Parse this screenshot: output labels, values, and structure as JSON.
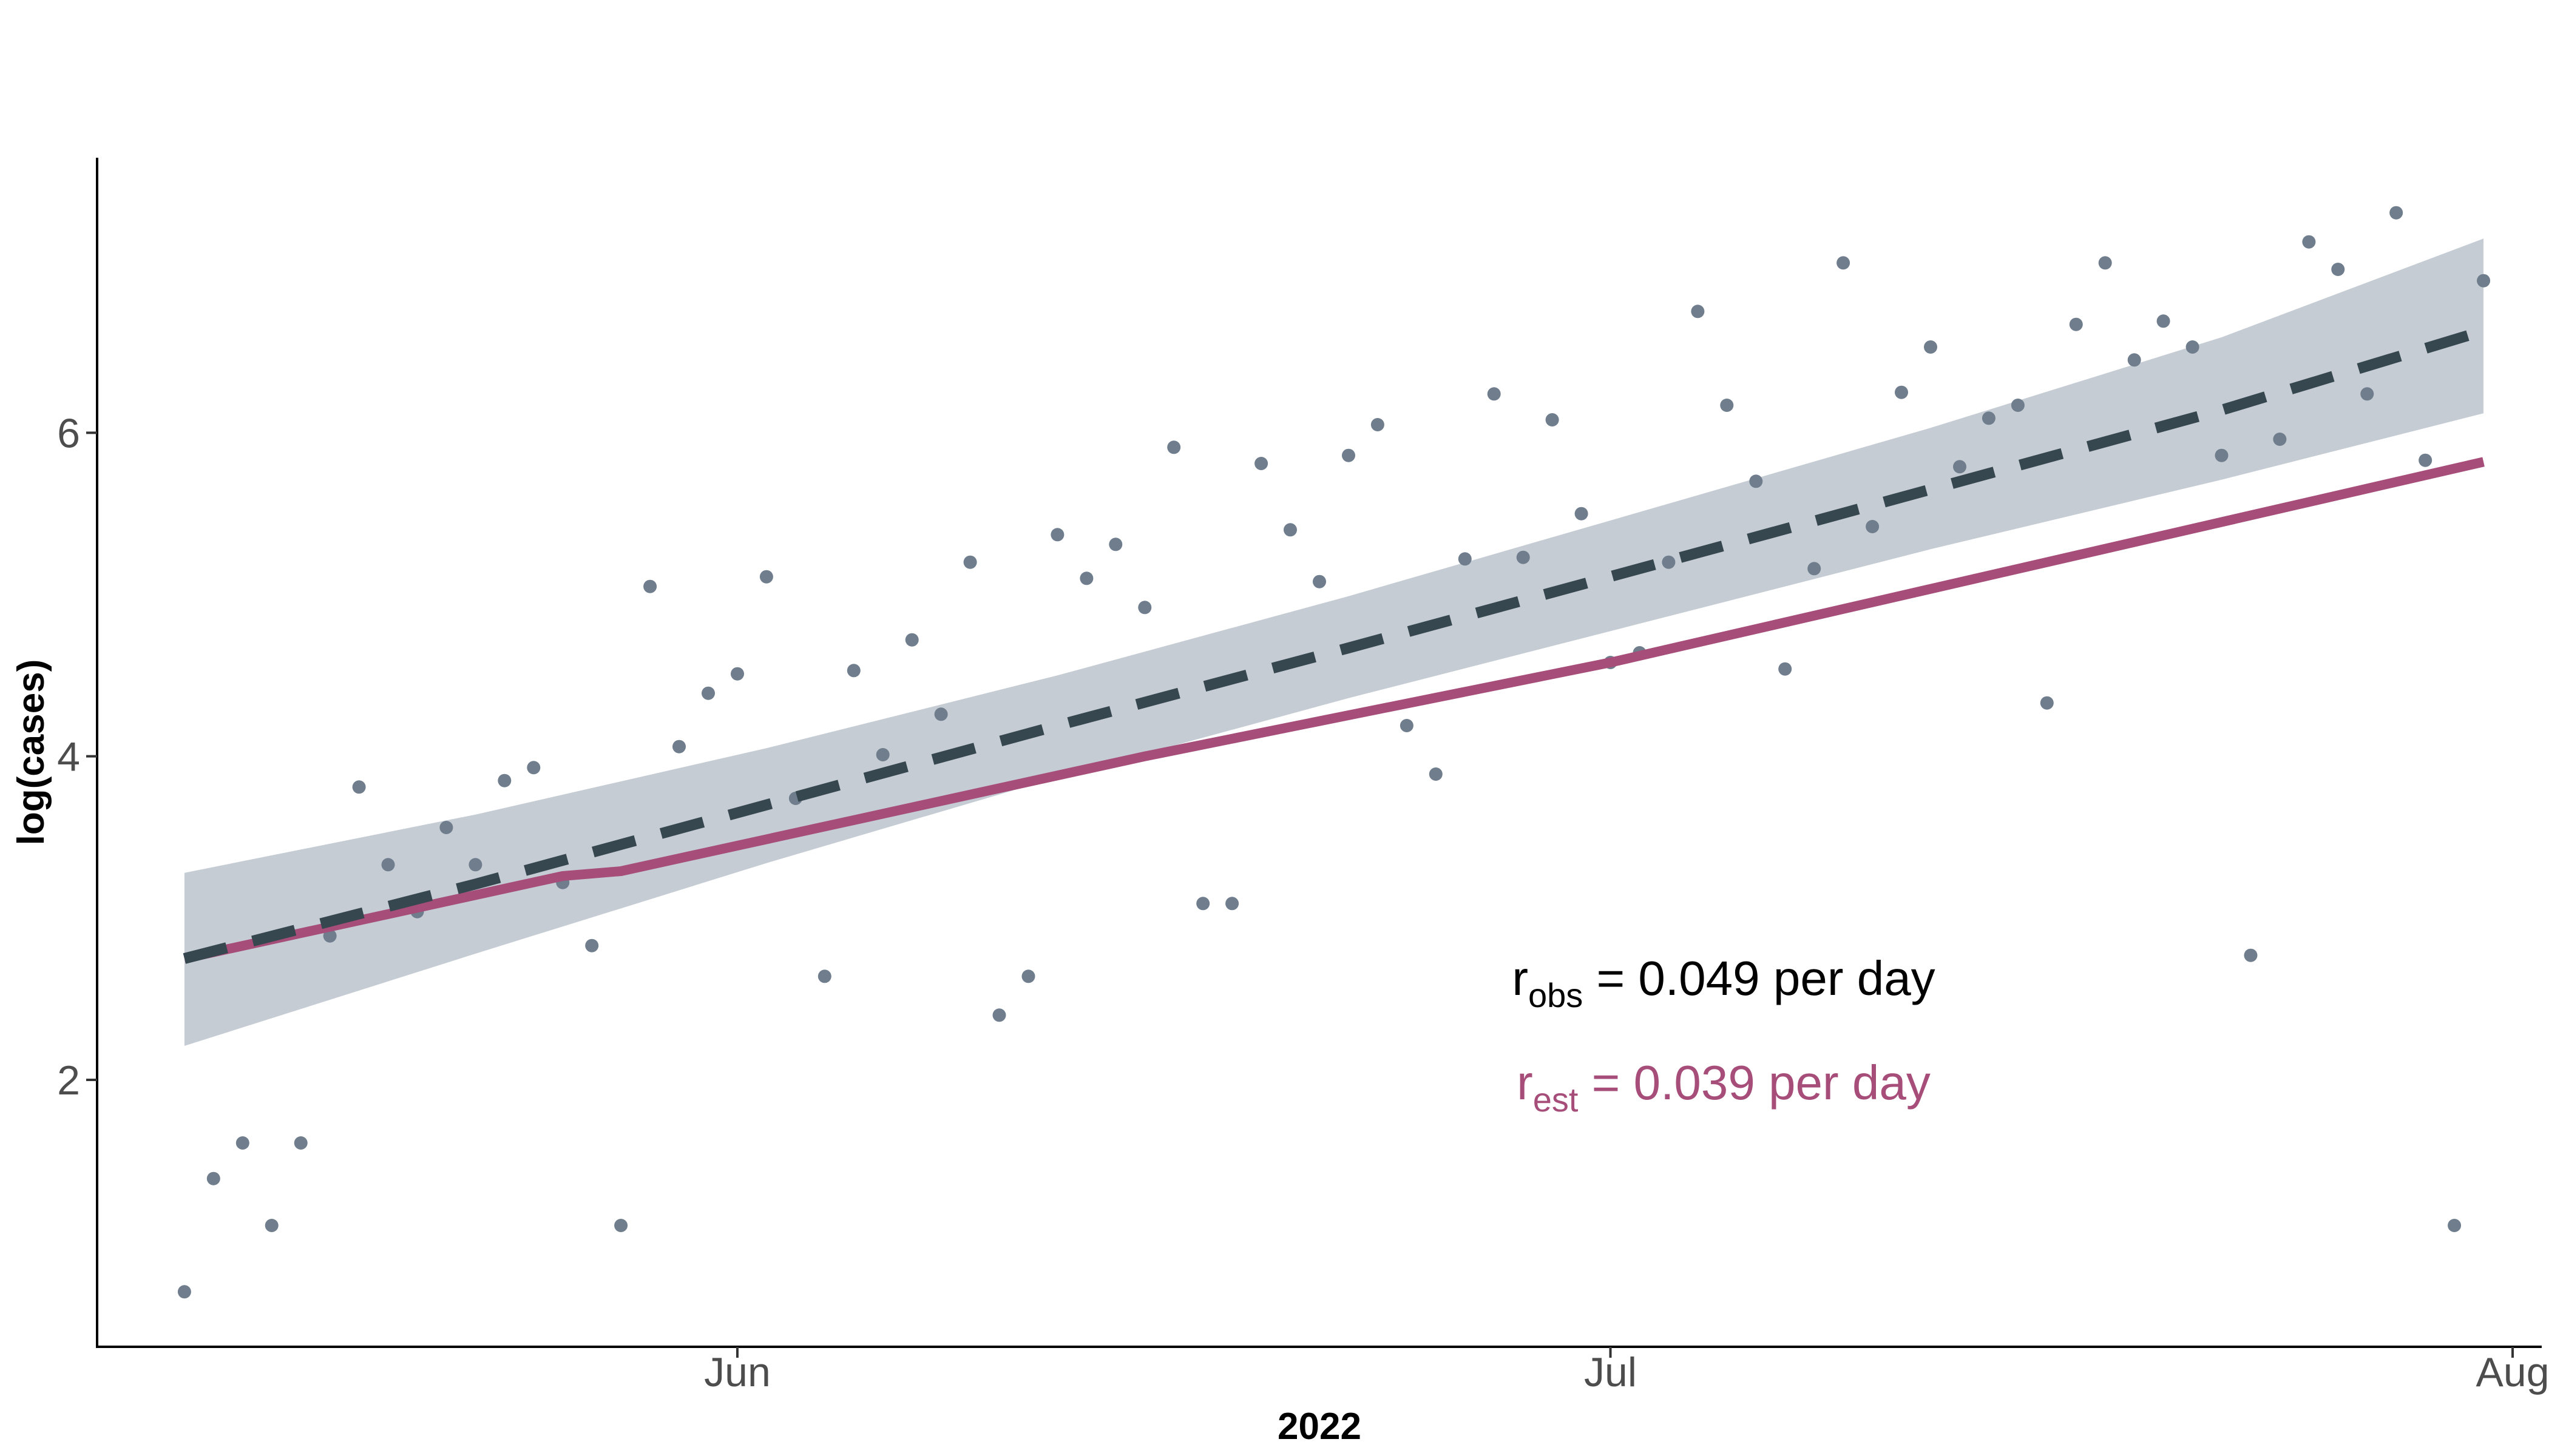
{
  "chart_data": {
    "type": "scatter",
    "xlabel": "2022",
    "ylabel": "log(cases)",
    "x_ticks": [
      "2022-06-01",
      "2022-07-01",
      "2022-08-01"
    ],
    "x_tick_labels": [
      "Jun",
      "Jul",
      "Aug"
    ],
    "xlim": [
      "2022-05-10",
      "2022-08-02"
    ],
    "y_ticks": [
      2,
      4,
      6
    ],
    "ylim": [
      0.35,
      7.7
    ],
    "grid": false,
    "colors": {
      "points": "#6f7d8c",
      "observed_fit": "#37474f",
      "ribbon": "#c5ccd4",
      "estimated_fit": "#a64d79",
      "axis": "#000000"
    },
    "series": [
      {
        "name": "observed",
        "type": "scatter",
        "points": [
          [
            "2022-05-13",
            0.69
          ],
          [
            "2022-05-14",
            1.39
          ],
          [
            "2022-05-15",
            1.61
          ],
          [
            "2022-05-16",
            1.1
          ],
          [
            "2022-05-17",
            1.61
          ],
          [
            "2022-05-18",
            2.89
          ],
          [
            "2022-05-19",
            3.81
          ],
          [
            "2022-05-20",
            3.33
          ],
          [
            "2022-05-21",
            3.04
          ],
          [
            "2022-05-22",
            3.56
          ],
          [
            "2022-05-23",
            3.33
          ],
          [
            "2022-05-24",
            3.85
          ],
          [
            "2022-05-25",
            3.93
          ],
          [
            "2022-05-26",
            3.22
          ],
          [
            "2022-05-27",
            2.83
          ],
          [
            "2022-05-28",
            1.1
          ],
          [
            "2022-05-29",
            5.05
          ],
          [
            "2022-05-30",
            4.06
          ],
          [
            "2022-05-31",
            4.39
          ],
          [
            "2022-06-01",
            4.51
          ],
          [
            "2022-06-02",
            5.11
          ],
          [
            "2022-06-03",
            3.74
          ],
          [
            "2022-06-04",
            2.64
          ],
          [
            "2022-06-05",
            4.53
          ],
          [
            "2022-06-06",
            4.01
          ],
          [
            "2022-06-07",
            4.72
          ],
          [
            "2022-06-08",
            4.26
          ],
          [
            "2022-06-09",
            5.2
          ],
          [
            "2022-06-10",
            2.4
          ],
          [
            "2022-06-11",
            2.64
          ],
          [
            "2022-06-12",
            5.37
          ],
          [
            "2022-06-13",
            5.1
          ],
          [
            "2022-06-14",
            5.31
          ],
          [
            "2022-06-15",
            4.92
          ],
          [
            "2022-06-16",
            5.91
          ],
          [
            "2022-06-17",
            3.09
          ],
          [
            "2022-06-18",
            3.09
          ],
          [
            "2022-06-19",
            5.81
          ],
          [
            "2022-06-20",
            5.4
          ],
          [
            "2022-06-21",
            5.08
          ],
          [
            "2022-06-22",
            5.86
          ],
          [
            "2022-06-23",
            6.05
          ],
          [
            "2022-06-24",
            4.19
          ],
          [
            "2022-06-25",
            3.89
          ],
          [
            "2022-06-26",
            5.22
          ],
          [
            "2022-06-27",
            6.24
          ],
          [
            "2022-06-28",
            5.23
          ],
          [
            "2022-06-29",
            6.08
          ],
          [
            "2022-06-30",
            5.5
          ],
          [
            "2022-07-01",
            4.58
          ],
          [
            "2022-07-02",
            4.64
          ],
          [
            "2022-07-03",
            5.2
          ],
          [
            "2022-07-04",
            6.75
          ],
          [
            "2022-07-05",
            6.17
          ],
          [
            "2022-07-06",
            5.7
          ],
          [
            "2022-07-07",
            4.54
          ],
          [
            "2022-07-08",
            5.16
          ],
          [
            "2022-07-09",
            7.05
          ],
          [
            "2022-07-10",
            5.42
          ],
          [
            "2022-07-11",
            6.25
          ],
          [
            "2022-07-12",
            6.53
          ],
          [
            "2022-07-13",
            5.79
          ],
          [
            "2022-07-14",
            6.09
          ],
          [
            "2022-07-15",
            6.17
          ],
          [
            "2022-07-16",
            4.33
          ],
          [
            "2022-07-17",
            6.67
          ],
          [
            "2022-07-18",
            7.05
          ],
          [
            "2022-07-19",
            6.45
          ],
          [
            "2022-07-20",
            6.69
          ],
          [
            "2022-07-21",
            6.53
          ],
          [
            "2022-07-22",
            5.86
          ],
          [
            "2022-07-23",
            2.77
          ],
          [
            "2022-07-24",
            5.96
          ],
          [
            "2022-07-25",
            7.18
          ],
          [
            "2022-07-26",
            7.01
          ],
          [
            "2022-07-27",
            6.24
          ],
          [
            "2022-07-28",
            7.36
          ],
          [
            "2022-07-29",
            5.83
          ],
          [
            "2022-07-30",
            1.1
          ],
          [
            "2022-07-31",
            6.94
          ]
        ]
      },
      {
        "name": "observed fit",
        "type": "line",
        "style": "dashed",
        "points": [
          [
            "2022-05-13",
            2.75
          ],
          [
            "2022-05-23",
            3.21
          ],
          [
            "2022-06-02",
            3.7
          ],
          [
            "2022-06-12",
            4.19
          ],
          [
            "2022-06-22",
            4.67
          ],
          [
            "2022-07-02",
            5.16
          ],
          [
            "2022-07-12",
            5.65
          ],
          [
            "2022-07-22",
            6.14
          ],
          [
            "2022-07-31",
            6.63
          ]
        ],
        "ribbon": [
          [
            "2022-05-13",
            2.21,
            3.28
          ],
          [
            "2022-05-23",
            2.78,
            3.64
          ],
          [
            "2022-06-02",
            3.34,
            4.05
          ],
          [
            "2022-06-12",
            3.87,
            4.5
          ],
          [
            "2022-06-22",
            4.36,
            4.99
          ],
          [
            "2022-07-02",
            4.82,
            5.51
          ],
          [
            "2022-07-12",
            5.28,
            6.03
          ],
          [
            "2022-07-22",
            5.71,
            6.59
          ],
          [
            "2022-07-31",
            6.12,
            7.2
          ]
        ]
      },
      {
        "name": "estimated fit",
        "type": "line",
        "style": "solid",
        "points": [
          [
            "2022-05-13",
            2.75
          ],
          [
            "2022-05-26",
            3.26
          ],
          [
            "2022-05-28",
            3.29
          ],
          [
            "2022-06-15",
            4.0
          ],
          [
            "2022-07-01",
            4.58
          ],
          [
            "2022-07-31",
            5.82
          ]
        ]
      }
    ],
    "annotations": [
      {
        "base": "r",
        "subscript": "obs",
        "text": " = 0.049 per day",
        "color": "#000000"
      },
      {
        "base": "r",
        "subscript": "est",
        "text": " = 0.039 per day",
        "color": "#a64d79"
      }
    ]
  }
}
